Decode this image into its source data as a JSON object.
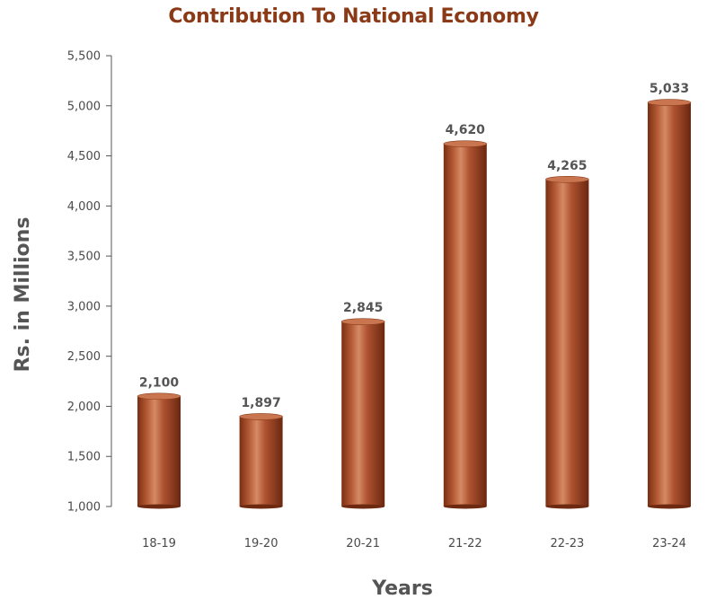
{
  "chart_data": {
    "type": "bar",
    "title": "Contribution To National Economy",
    "xlabel": "Years",
    "ylabel": "Rs. in Millions",
    "categories": [
      "18-19",
      "19-20",
      "20-21",
      "21-22",
      "22-23",
      "23-24"
    ],
    "values": [
      2100,
      1897,
      2845,
      4620,
      4265,
      5033
    ],
    "value_labels": [
      "2,100",
      "1,897",
      "2,845",
      "4,620",
      "4,265",
      "5,033"
    ],
    "ylim": [
      1000,
      5500
    ],
    "yticks": [
      1000,
      1500,
      2000,
      2500,
      3000,
      3500,
      4000,
      4500,
      5000,
      5500
    ],
    "ytick_labels": [
      "1,000",
      "1,500",
      "2,000",
      "2,500",
      "3,000",
      "3,500",
      "4,000",
      "4,500",
      "5,000",
      "5,500"
    ],
    "grid": false,
    "legend": "none"
  },
  "colors": {
    "title": "#8b3a17",
    "bar_base": "#a0492a",
    "bar_dark": "#6e2a10",
    "bar_light": "#d07a55",
    "bar_top": "#c9754f",
    "axis": "#555555"
  }
}
